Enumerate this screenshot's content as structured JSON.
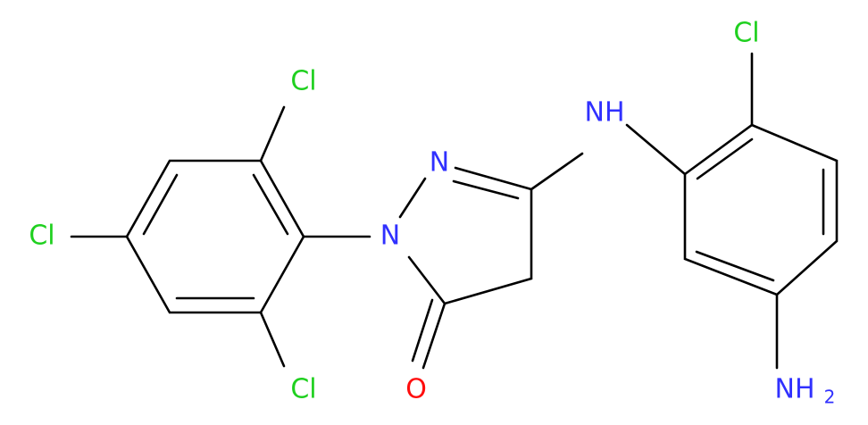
{
  "nodes": [
    {
      "label": "Cl"
    },
    {
      "label": "Cl"
    },
    {
      "label": "Cl"
    },
    {
      "label": "N"
    },
    {
      "label": "N"
    },
    {
      "label": "O"
    },
    {
      "label": "NH"
    },
    {
      "label": "Cl"
    },
    {
      "label": "NH",
      "subscript": "2"
    }
  ]
}
